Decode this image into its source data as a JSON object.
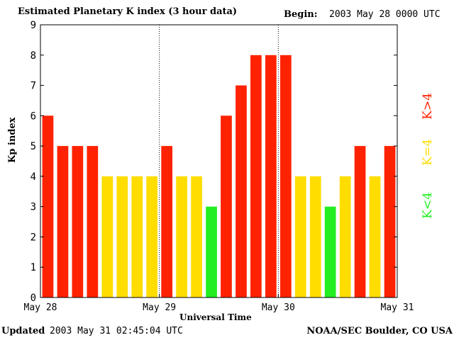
{
  "header": {
    "title": "Estimated Planetary K index (3 hour data)",
    "begin_label": "Begin:",
    "begin_value": "2003 May 28 0000 UTC"
  },
  "footer": {
    "updated_label": "Updated",
    "updated_value": "2003 May 31 02:45:04 UTC",
    "credit": "NOAA/SEC Boulder, CO USA"
  },
  "colors": {
    "high": "#ff2200",
    "equal": "#ffdd00",
    "low": "#22ee22",
    "background": "#ffffff",
    "axes": "#000000"
  },
  "chart_data": {
    "type": "bar",
    "title": "Estimated Planetary K index (3 hour data)",
    "xlabel": "Universal Time",
    "ylabel": "Kp index",
    "ylim": [
      0,
      9
    ],
    "yticks": [
      "0",
      "1",
      "2",
      "3",
      "4",
      "5",
      "6",
      "7",
      "8",
      "9"
    ],
    "x_tick_labels": [
      "May 28",
      "May 29",
      "May 30",
      "May 31"
    ],
    "day_separators": [
      "May 29",
      "May 30"
    ],
    "values": [
      6,
      5,
      5,
      5,
      4,
      4,
      4,
      4,
      5,
      4,
      4,
      3,
      6,
      7,
      8,
      8,
      8,
      4,
      4,
      3,
      4,
      5,
      4,
      5
    ],
    "legend": {
      "high": "K>4",
      "equal": "K=4",
      "low": "K<4"
    }
  }
}
